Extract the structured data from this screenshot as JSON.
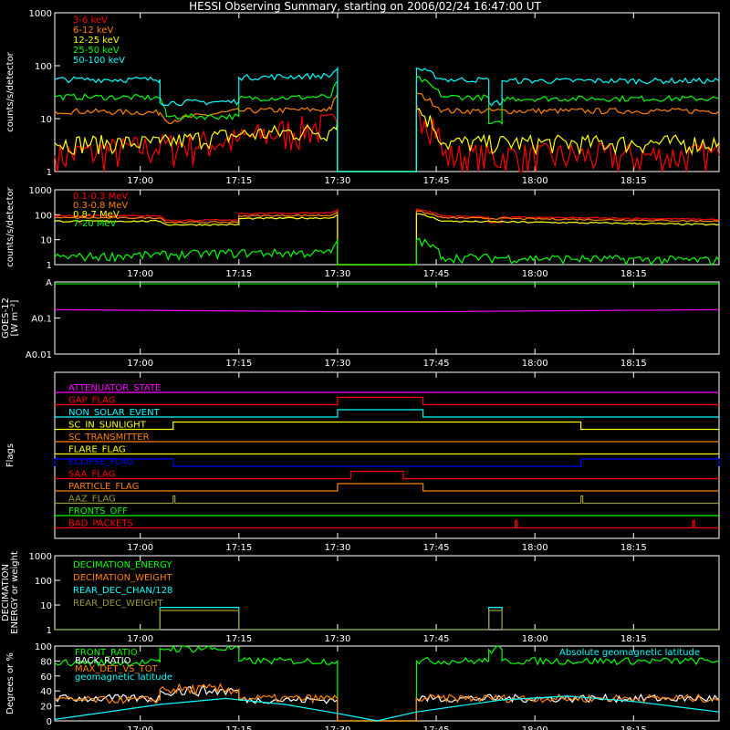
{
  "title": "HESSI Observing Summary, starting on 2006/02/24 16:47:00 UT",
  "time_axis": {
    "start": "16:47",
    "end": "18:28",
    "ticks": [
      "17:00",
      "17:15",
      "17:30",
      "17:45",
      "18:00",
      "18:15"
    ]
  },
  "colors": {
    "red": "#ff0000",
    "orange": "#ff8000",
    "yellow": "#ffff00",
    "green": "#00ff00",
    "cyan": "#00ffff",
    "magenta": "#ff00ff",
    "blue": "#0000ff",
    "olive": "#999933",
    "white": "#ffffff"
  },
  "chart_data": [
    {
      "id": "p1",
      "type": "line",
      "scale": "log",
      "ylabel": "counts/s/detector",
      "yticks": [
        "1",
        "10",
        "100",
        "1000"
      ],
      "ylim": [
        1,
        1000
      ],
      "series": [
        {
          "name": "3-6 keV",
          "color": "red",
          "points": [
            [
              "16:47",
              2
            ],
            [
              "17:03",
              3
            ],
            [
              "17:15",
              4
            ],
            [
              "17:30",
              8
            ],
            [
              "17:30",
              1
            ],
            [
              "17:42",
              1
            ],
            [
              "17:42",
              20
            ],
            [
              "17:46",
              2
            ],
            [
              "18:28",
              2
            ]
          ]
        },
        {
          "name": "6-12 keV",
          "color": "orange",
          "points": [
            [
              "16:47",
              14
            ],
            [
              "17:03",
              13
            ],
            [
              "17:04",
              9
            ],
            [
              "17:15",
              14
            ],
            [
              "17:29",
              15
            ],
            [
              "17:30",
              30
            ],
            [
              "17:30",
              1
            ],
            [
              "17:42",
              1
            ],
            [
              "17:42",
              30
            ],
            [
              "17:46",
              14
            ],
            [
              "18:28",
              14
            ]
          ]
        },
        {
          "name": "12-25 keV",
          "color": "yellow",
          "points": [
            [
              "16:47",
              3.5
            ],
            [
              "17:03",
              3.5
            ],
            [
              "17:15",
              5
            ],
            [
              "17:29",
              6
            ],
            [
              "17:30",
              10
            ],
            [
              "17:30",
              1
            ],
            [
              "17:42",
              1
            ],
            [
              "17:42",
              15
            ],
            [
              "17:46",
              3.5
            ],
            [
              "18:28",
              3.5
            ]
          ]
        },
        {
          "name": "25-50 keV",
          "color": "green",
          "points": [
            [
              "16:47",
              26
            ],
            [
              "17:03",
              25
            ],
            [
              "17:04",
              11
            ],
            [
              "17:15",
              11
            ],
            [
              "17:15",
              24
            ],
            [
              "17:29",
              26
            ],
            [
              "17:30",
              50
            ],
            [
              "17:30",
              1
            ],
            [
              "17:42",
              1
            ],
            [
              "17:42",
              60
            ],
            [
              "17:46",
              26
            ],
            [
              "17:53",
              25
            ],
            [
              "17:53",
              8
            ],
            [
              "17:55",
              8
            ],
            [
              "17:55",
              24
            ],
            [
              "18:28",
              24
            ]
          ]
        },
        {
          "name": "50-100 keV",
          "color": "cyan",
          "points": [
            [
              "16:47",
              55
            ],
            [
              "17:03",
              55
            ],
            [
              "17:03",
              20
            ],
            [
              "17:15",
              21
            ],
            [
              "17:15",
              60
            ],
            [
              "17:29",
              65
            ],
            [
              "17:30",
              90
            ],
            [
              "17:30",
              1
            ],
            [
              "17:42",
              1
            ],
            [
              "17:42",
              90
            ],
            [
              "17:46",
              55
            ],
            [
              "17:53",
              54
            ],
            [
              "17:53",
              20
            ],
            [
              "17:55",
              20
            ],
            [
              "17:55",
              52
            ],
            [
              "18:28",
              52
            ]
          ]
        }
      ]
    },
    {
      "id": "p2",
      "type": "line",
      "scale": "log",
      "ylabel": "counts/s/detector",
      "yticks": [
        "1",
        "10",
        "100",
        "1000"
      ],
      "ylim": [
        1,
        1000
      ],
      "series": [
        {
          "name": "0.1-0.3 MeV",
          "color": "red",
          "points": [
            [
              "16:47",
              90
            ],
            [
              "17:03",
              90
            ],
            [
              "17:04",
              60
            ],
            [
              "17:15",
              60
            ],
            [
              "17:15",
              110
            ],
            [
              "17:29",
              120
            ],
            [
              "17:30",
              160
            ],
            [
              "17:30",
              1
            ],
            [
              "17:42",
              1
            ],
            [
              "17:42",
              170
            ],
            [
              "17:46",
              90
            ],
            [
              "17:53",
              80
            ],
            [
              "17:53",
              50
            ],
            [
              "17:55",
              50
            ],
            [
              "17:55",
              80
            ],
            [
              "18:28",
              65
            ]
          ]
        },
        {
          "name": "0.3-0.8 MeV",
          "color": "orange",
          "points": [
            [
              "16:47",
              75
            ],
            [
              "17:03",
              75
            ],
            [
              "17:04",
              50
            ],
            [
              "17:15",
              50
            ],
            [
              "17:15",
              90
            ],
            [
              "17:29",
              95
            ],
            [
              "17:30",
              130
            ],
            [
              "17:30",
              1
            ],
            [
              "17:42",
              1
            ],
            [
              "17:42",
              140
            ],
            [
              "17:46",
              75
            ],
            [
              "18:28",
              55
            ]
          ]
        },
        {
          "name": "0.8-7 MeV",
          "color": "yellow",
          "points": [
            [
              "16:47",
              55
            ],
            [
              "17:03",
              55
            ],
            [
              "17:04",
              40
            ],
            [
              "17:15",
              40
            ],
            [
              "17:15",
              70
            ],
            [
              "17:29",
              75
            ],
            [
              "17:30",
              100
            ],
            [
              "17:30",
              1
            ],
            [
              "17:42",
              1
            ],
            [
              "17:42",
              110
            ],
            [
              "17:46",
              55
            ],
            [
              "18:28",
              40
            ]
          ]
        },
        {
          "name": "7-20 MeV",
          "color": "green",
          "points": [
            [
              "16:47",
              2
            ],
            [
              "17:03",
              2.5
            ],
            [
              "17:15",
              3
            ],
            [
              "17:29",
              3
            ],
            [
              "17:30",
              10
            ],
            [
              "17:30",
              1
            ],
            [
              "17:42",
              1
            ],
            [
              "17:42",
              10
            ],
            [
              "17:46",
              2
            ],
            [
              "18:28",
              1.5
            ]
          ]
        }
      ]
    },
    {
      "id": "p3",
      "type": "line",
      "scale": "log",
      "ylabel": "GOES-12 [W m⁻²]",
      "yticks": [
        "A0.01",
        "A0.1",
        "A"
      ],
      "series": [
        {
          "name": "GOES-12",
          "color": "magenta",
          "points": [
            [
              "16:47",
              0.17
            ],
            [
              "17:30",
              0.15
            ],
            [
              "17:45",
              0.15
            ],
            [
              "18:28",
              0.17
            ]
          ]
        }
      ]
    },
    {
      "id": "p4",
      "type": "line",
      "ylabel": "Flags",
      "flags": [
        {
          "name": "ATTENUATOR_STATE",
          "color": "magenta",
          "on": []
        },
        {
          "name": "GAP_FLAG",
          "color": "red",
          "on": [
            [
              "17:30",
              "17:43"
            ]
          ]
        },
        {
          "name": "NON_SOLAR_EVENT",
          "color": "cyan",
          "on": [
            [
              "17:30",
              "17:43"
            ]
          ]
        },
        {
          "name": "SC_IN_SUNLIGHT",
          "color": "yellow",
          "on": [
            [
              "17:05",
              "18:07"
            ]
          ]
        },
        {
          "name": "SC_TRANSMITTER",
          "color": "orange",
          "on": []
        },
        {
          "name": "FLARE_FLAG",
          "color": "yellow",
          "on": []
        },
        {
          "name": "ECLIPSE_FLAG",
          "color": "blue",
          "on": [
            [
              "16:47",
              "17:05"
            ],
            [
              "18:07",
              "18:28"
            ]
          ]
        },
        {
          "name": "SAA_FLAG",
          "color": "red",
          "on": [
            [
              "17:32",
              "17:40"
            ]
          ]
        },
        {
          "name": "PARTICLE_FLAG",
          "color": "orange",
          "on": [
            [
              "17:30",
              "17:43"
            ]
          ]
        },
        {
          "name": "AAZ_FLAG",
          "color": "olive",
          "on": [
            [
              "17:05",
              "17:05"
            ],
            [
              "18:07",
              "18:07"
            ]
          ]
        },
        {
          "name": "FRONTS_OFF",
          "color": "green",
          "on": []
        },
        {
          "name": "BAD_PACKETS",
          "color": "red",
          "on": [
            [
              "17:57",
              "17:57"
            ],
            [
              "18:24",
              "18:24"
            ]
          ]
        }
      ]
    },
    {
      "id": "p5",
      "type": "line",
      "scale": "log",
      "ylabel": "DECIMATION ENERGY or weight",
      "yticks": [
        "1",
        "10",
        "100",
        "1000"
      ],
      "ylim": [
        1,
        1000
      ],
      "series": [
        {
          "name": "DECIMATION_ENERGY",
          "color": "green",
          "points": []
        },
        {
          "name": "DECIMATION_WEIGHT",
          "color": "orange",
          "points": []
        },
        {
          "name": "REAR_DEC_CHAN/128",
          "color": "cyan",
          "points": [
            [
              "16:47",
              1
            ],
            [
              "17:03",
              1
            ],
            [
              "17:03",
              8
            ],
            [
              "17:15",
              8
            ],
            [
              "17:15",
              1
            ],
            [
              "17:53",
              1
            ],
            [
              "17:53",
              8
            ],
            [
              "17:55",
              8
            ],
            [
              "17:55",
              1
            ],
            [
              "18:28",
              1
            ]
          ]
        },
        {
          "name": "REAR_DEC_WEIGHT",
          "color": "olive",
          "points": [
            [
              "16:47",
              1
            ],
            [
              "17:03",
              1
            ],
            [
              "17:03",
              6
            ],
            [
              "17:15",
              6
            ],
            [
              "17:15",
              1
            ],
            [
              "17:53",
              1
            ],
            [
              "17:53",
              6
            ],
            [
              "17:55",
              6
            ],
            [
              "17:55",
              1
            ],
            [
              "18:28",
              1
            ]
          ]
        }
      ]
    },
    {
      "id": "p6",
      "type": "line",
      "ylabel": "Degrees or %",
      "yticks": [
        "0",
        "20",
        "40",
        "60",
        "80",
        "100"
      ],
      "ylim": [
        0,
        100
      ],
      "annotation": "Absolute geomagnetic latitude",
      "series": [
        {
          "name": "FRONT_RATIO",
          "color": "green",
          "points": [
            [
              "16:47",
              78
            ],
            [
              "17:03",
              78
            ],
            [
              "17:03",
              97
            ],
            [
              "17:15",
              97
            ],
            [
              "17:15",
              80
            ],
            [
              "17:30",
              80
            ],
            [
              "17:30",
              0
            ],
            [
              "17:42",
              0
            ],
            [
              "17:42",
              80
            ],
            [
              "17:53",
              80
            ],
            [
              "17:53",
              95
            ],
            [
              "17:55",
              95
            ],
            [
              "17:55",
              80
            ],
            [
              "18:28",
              80
            ]
          ]
        },
        {
          "name": "BACK_RATIO",
          "color": "white",
          "points": [
            [
              "16:47",
              30
            ],
            [
              "17:03",
              30
            ],
            [
              "17:03",
              40
            ],
            [
              "17:15",
              40
            ],
            [
              "17:15",
              28
            ],
            [
              "17:30",
              28
            ],
            [
              "17:30",
              0
            ],
            [
              "17:42",
              0
            ],
            [
              "17:42",
              30
            ],
            [
              "18:28",
              30
            ]
          ]
        },
        {
          "name": "MAX_DET_VS_TOT",
          "color": "orange",
          "points": [
            [
              "16:47",
              28
            ],
            [
              "17:03",
              28
            ],
            [
              "17:03",
              42
            ],
            [
              "17:15",
              42
            ],
            [
              "17:15",
              30
            ],
            [
              "17:30",
              30
            ],
            [
              "17:30",
              0
            ],
            [
              "17:42",
              0
            ],
            [
              "17:42",
              30
            ],
            [
              "18:28",
              30
            ]
          ]
        },
        {
          "name": "geomagnetic latitude",
          "color": "cyan",
          "points": [
            [
              "16:47",
              2
            ],
            [
              "17:03",
              22
            ],
            [
              "17:13",
              30
            ],
            [
              "17:22",
              22
            ],
            [
              "17:30",
              10
            ],
            [
              "17:36",
              0
            ],
            [
              "17:42",
              12
            ],
            [
              "17:55",
              28
            ],
            [
              "18:05",
              33
            ],
            [
              "18:15",
              26
            ],
            [
              "18:28",
              12
            ]
          ]
        }
      ]
    }
  ]
}
